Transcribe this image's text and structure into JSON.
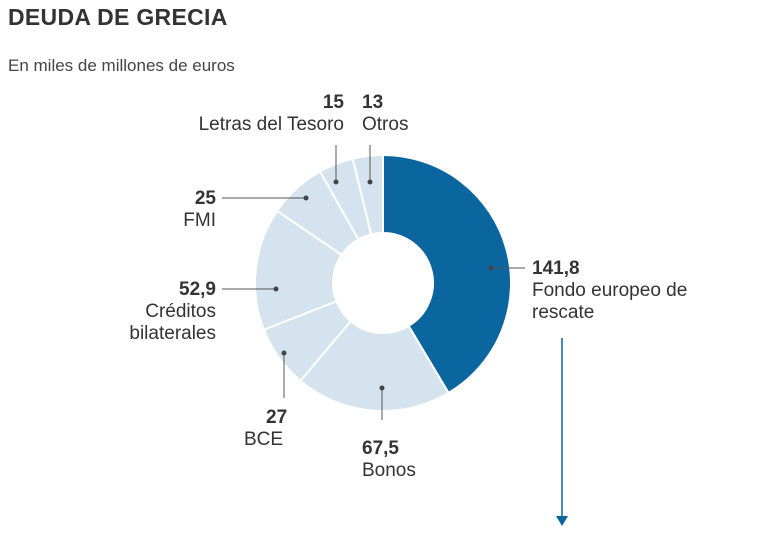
{
  "chart_data": {
    "type": "pie",
    "title": "DEUDA DE GRECIA",
    "subtitle": "En miles de millones de euros",
    "slices": [
      {
        "label": "Fondo europeo de rescate",
        "value": 141.8,
        "value_text": "141,8",
        "color": "#0b66a0"
      },
      {
        "label": "Bonos",
        "value": 67.5,
        "value_text": "67,5",
        "color": "#d4e3ee"
      },
      {
        "label": "BCE",
        "value": 27,
        "value_text": "27",
        "color": "#d4e3ee"
      },
      {
        "label": "Créditos bilaterales",
        "value": 52.9,
        "value_text": "52,9",
        "color": "#d4e3ee"
      },
      {
        "label": "FMI",
        "value": 25,
        "value_text": "25",
        "color": "#d4e3ee"
      },
      {
        "label": "Letras del Tesoro",
        "value": 15,
        "value_text": "15",
        "color": "#d4e3ee"
      },
      {
        "label": "Otros",
        "value": 13,
        "value_text": "13",
        "color": "#d4e3ee"
      }
    ]
  }
}
